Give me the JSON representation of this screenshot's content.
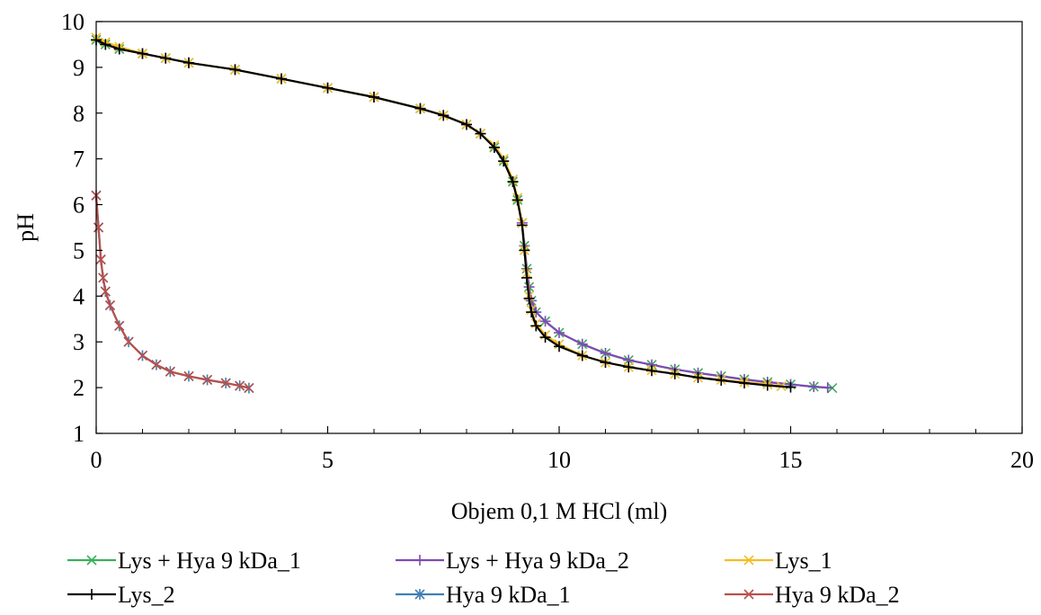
{
  "chart_data": {
    "type": "line",
    "xlabel": "Objem 0,1 M HCl (ml)",
    "ylabel": "pH",
    "xlim": [
      0,
      20
    ],
    "ylim": [
      1,
      10
    ],
    "xticks": [
      0,
      5,
      10,
      15,
      20
    ],
    "yticks": [
      1,
      2,
      3,
      4,
      5,
      6,
      7,
      8,
      9,
      10
    ],
    "grid": false,
    "legend_position": "bottom",
    "series": [
      {
        "name": "Lys + Hya 9 kDa_1",
        "color": "#3cae5c",
        "marker": "x",
        "x": [
          0,
          0.2,
          0.5,
          1,
          1.5,
          2,
          3,
          4,
          5,
          6,
          7,
          7.5,
          8,
          8.3,
          8.6,
          8.8,
          9.0,
          9.1,
          9.2,
          9.25,
          9.3,
          9.35,
          9.4,
          9.5,
          9.7,
          10,
          10.5,
          11,
          11.5,
          12,
          12.5,
          13,
          13.5,
          14,
          14.5,
          15,
          15.5,
          15.9
        ],
        "y": [
          9.6,
          9.5,
          9.4,
          9.3,
          9.2,
          9.1,
          8.95,
          8.75,
          8.55,
          8.35,
          8.1,
          7.95,
          7.75,
          7.55,
          7.25,
          6.95,
          6.5,
          6.1,
          5.6,
          5.1,
          4.6,
          4.2,
          3.9,
          3.65,
          3.45,
          3.2,
          2.95,
          2.75,
          2.6,
          2.5,
          2.4,
          2.32,
          2.25,
          2.18,
          2.12,
          2.07,
          2.02,
          1.99
        ]
      },
      {
        "name": "Lys + Hya 9 kDa_2",
        "color": "#7f4ab5",
        "marker": "+",
        "x": [
          0,
          0.2,
          0.5,
          1,
          1.5,
          2,
          3,
          4,
          5,
          6,
          7,
          7.5,
          8,
          8.3,
          8.6,
          8.8,
          9.0,
          9.1,
          9.2,
          9.25,
          9.3,
          9.35,
          9.4,
          9.5,
          9.7,
          10,
          10.5,
          11,
          11.5,
          12,
          12.5,
          13,
          13.5,
          14,
          14.5,
          15,
          15.5,
          15.8
        ],
        "y": [
          9.6,
          9.5,
          9.4,
          9.3,
          9.2,
          9.1,
          8.95,
          8.75,
          8.55,
          8.35,
          8.1,
          7.95,
          7.75,
          7.55,
          7.25,
          6.95,
          6.5,
          6.1,
          5.6,
          5.1,
          4.6,
          4.2,
          3.9,
          3.65,
          3.45,
          3.2,
          2.95,
          2.75,
          2.6,
          2.5,
          2.4,
          2.32,
          2.25,
          2.18,
          2.12,
          2.07,
          2.02,
          2.0
        ]
      },
      {
        "name": "Lys_1",
        "color": "#f5bd22",
        "marker": "x",
        "x": [
          0,
          0.2,
          0.5,
          1,
          1.5,
          2,
          3,
          4,
          5,
          6,
          7,
          7.5,
          8,
          8.3,
          8.6,
          8.8,
          9.0,
          9.1,
          9.2,
          9.25,
          9.3,
          9.35,
          9.4,
          9.5,
          9.7,
          10,
          10.5,
          11,
          11.5,
          12,
          12.5,
          13,
          13.5,
          14,
          14.5,
          14.8
        ],
        "y": [
          9.65,
          9.55,
          9.45,
          9.3,
          9.2,
          9.1,
          8.95,
          8.75,
          8.55,
          8.35,
          8.1,
          7.95,
          7.75,
          7.55,
          7.3,
          7.0,
          6.55,
          6.15,
          5.6,
          5.0,
          4.5,
          4.0,
          3.7,
          3.4,
          3.15,
          2.95,
          2.7,
          2.55,
          2.45,
          2.38,
          2.3,
          2.22,
          2.17,
          2.12,
          2.07,
          2.03
        ]
      },
      {
        "name": "Lys_2",
        "color": "#000000",
        "marker": "+",
        "x": [
          0,
          0.2,
          0.5,
          1,
          1.5,
          2,
          3,
          4,
          5,
          6,
          7,
          7.5,
          8,
          8.3,
          8.6,
          8.8,
          9.0,
          9.1,
          9.2,
          9.25,
          9.3,
          9.35,
          9.4,
          9.5,
          9.7,
          10,
          10.5,
          11,
          11.5,
          12,
          12.5,
          13,
          13.5,
          14,
          14.5,
          15
        ],
        "y": [
          9.6,
          9.5,
          9.4,
          9.3,
          9.2,
          9.1,
          8.95,
          8.75,
          8.55,
          8.35,
          8.1,
          7.95,
          7.75,
          7.55,
          7.25,
          6.95,
          6.5,
          6.1,
          5.55,
          5.0,
          4.4,
          3.95,
          3.65,
          3.35,
          3.1,
          2.9,
          2.7,
          2.55,
          2.45,
          2.37,
          2.3,
          2.22,
          2.16,
          2.1,
          2.05,
          2.01
        ]
      },
      {
        "name": "Hya 9 kDa_1",
        "color": "#3f7fb5",
        "marker": "*",
        "x": [
          0,
          0.05,
          0.1,
          0.15,
          0.2,
          0.3,
          0.5,
          0.7,
          1.0,
          1.3,
          1.6,
          2.0,
          2.4,
          2.8,
          3.1,
          3.3
        ],
        "y": [
          6.2,
          5.5,
          4.8,
          4.4,
          4.1,
          3.8,
          3.35,
          3.0,
          2.7,
          2.5,
          2.35,
          2.25,
          2.17,
          2.1,
          2.04,
          1.99
        ]
      },
      {
        "name": "Hya 9 kDa_2",
        "color": "#b8504b",
        "marker": "x",
        "x": [
          0,
          0.05,
          0.1,
          0.15,
          0.2,
          0.3,
          0.5,
          0.7,
          1.0,
          1.3,
          1.6,
          2.0,
          2.4,
          2.8,
          3.1,
          3.3
        ],
        "y": [
          6.2,
          5.5,
          4.8,
          4.4,
          4.1,
          3.8,
          3.35,
          3.0,
          2.7,
          2.5,
          2.35,
          2.25,
          2.17,
          2.1,
          2.04,
          1.99
        ]
      }
    ]
  }
}
